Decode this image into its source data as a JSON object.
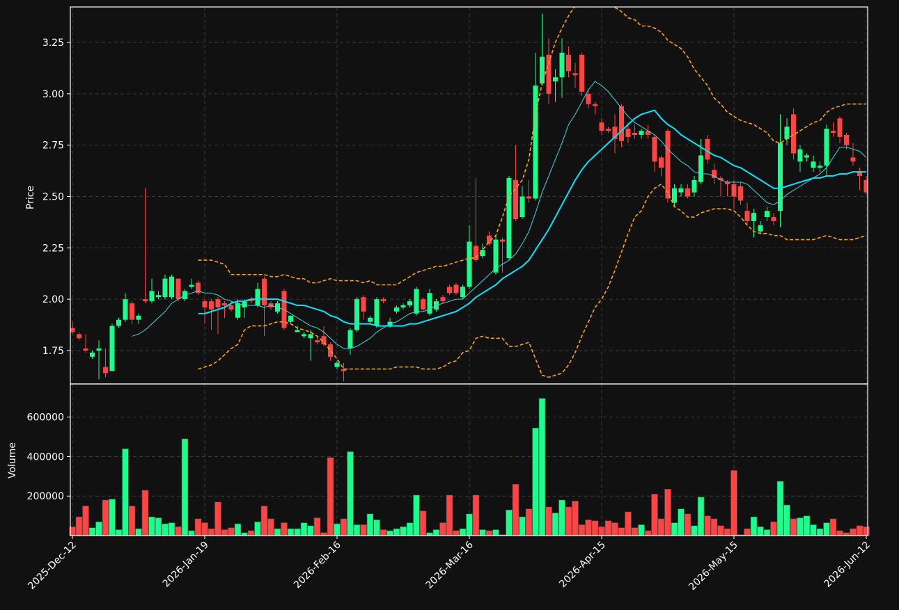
{
  "chart_data": {
    "type": "candlestick",
    "ylabel": "Price",
    "ylim": [
      1.5875,
      3.4227
    ],
    "yticks": [
      1.75,
      {
        "value": 2.0,
        "label": "2.00"
      },
      2.25,
      {
        "value": 2.5,
        "label": "2.50"
      },
      2.75,
      {
        "value": 3.0,
        "label": "3.00"
      },
      3.25
    ],
    "grid": true,
    "up_color": "#1aff8c",
    "down_color": "#ff4444",
    "categories": [
      "2025-Dec-12",
      null,
      null,
      null,
      null,
      null,
      null,
      null,
      null,
      null,
      null,
      null,
      null,
      null,
      null,
      null,
      null,
      null,
      null,
      null,
      "2026-Jan-19",
      null,
      null,
      null,
      null,
      null,
      null,
      null,
      null,
      null,
      null,
      null,
      null,
      null,
      null,
      null,
      null,
      null,
      null,
      null,
      "2026-Feb-16",
      null,
      null,
      null,
      null,
      null,
      null,
      null,
      null,
      null,
      null,
      null,
      null,
      null,
      null,
      null,
      null,
      null,
      null,
      null,
      "2026-Mar-16",
      null,
      null,
      null,
      null,
      null,
      null,
      null,
      null,
      null,
      null,
      null,
      null,
      null,
      null,
      null,
      null,
      null,
      null,
      null,
      "2026-Apr-15",
      null,
      null,
      null,
      null,
      null,
      null,
      null,
      null,
      null,
      null,
      null,
      null,
      null,
      null,
      null,
      null,
      null,
      null,
      null,
      "2026-May-15",
      null,
      null,
      null,
      null,
      null,
      null,
      null,
      null,
      null,
      null,
      null,
      null,
      null,
      null,
      null,
      null,
      null,
      null,
      null,
      "2026-Jun-12"
    ],
    "open": [
      1.86,
      1.83,
      1.76,
      1.72,
      1.75,
      1.67,
      1.65,
      1.87,
      1.9,
      1.98,
      1.9,
      2.0,
      1.99,
      2.01,
      2.01,
      2.01,
      2.1,
      2.0,
      2.06,
      2.08,
      1.99,
      1.99,
      2.0,
      1.98,
      1.97,
      1.91,
      1.96,
      2.0,
      1.97,
      2.1,
      1.98,
      1.94,
      2.04,
      1.89,
      1.84,
      1.82,
      1.81,
      1.8,
      1.82,
      1.78,
      1.67,
      1.66,
      1.76,
      1.85,
      2.01,
      1.89,
      1.87,
      2.0,
      1.87,
      1.94,
      1.96,
      1.97,
      1.93,
      2.0,
      1.93,
      1.95,
      2.01,
      2.06,
      2.07,
      2.01,
      2.06,
      2.26,
      2.21,
      2.31,
      2.13,
      2.29,
      2.2,
      2.58,
      2.4,
      2.5,
      2.49,
      3.05,
      3.19,
      3.06,
      3.08,
      3.19,
      3.1,
      3.19,
      3.0,
      2.95,
      2.86,
      2.83,
      2.84,
      2.94,
      2.83,
      2.81,
      2.8,
      2.82,
      2.79,
      2.69,
      2.82,
      2.47,
      2.52,
      2.54,
      2.52,
      2.57,
      2.78,
      2.63,
      2.59,
      2.57,
      2.56,
      2.55,
      2.43,
      2.38,
      2.33,
      2.4,
      2.4,
      2.43,
      2.78,
      2.9,
      2.67,
      2.69,
      2.64,
      2.64,
      2.65,
      2.82,
      2.88,
      2.8,
      2.69,
      2.62,
      2.58
    ],
    "high": [
      1.89,
      1.84,
      1.83,
      1.75,
      1.8,
      1.76,
      1.88,
      1.91,
      2.03,
      1.99,
      1.93,
      2.54,
      2.1,
      2.04,
      2.12,
      2.12,
      2.1,
      2.05,
      2.1,
      2.09,
      2.0,
      2.0,
      2.01,
      1.99,
      1.99,
      2.0,
      2.0,
      2.01,
      2.08,
      2.11,
      1.99,
      1.99,
      2.05,
      1.92,
      1.87,
      1.84,
      1.85,
      1.82,
      1.87,
      1.79,
      1.7,
      1.69,
      1.86,
      2.01,
      2.02,
      1.92,
      2.01,
      2.01,
      1.91,
      1.97,
      1.98,
      2.0,
      2.06,
      2.01,
      2.05,
      2.0,
      2.02,
      2.07,
      2.08,
      2.07,
      2.36,
      2.59,
      2.27,
      2.33,
      2.31,
      2.3,
      2.6,
      2.75,
      2.55,
      2.58,
      3.2,
      3.39,
      3.27,
      3.12,
      3.27,
      3.23,
      3.15,
      3.2,
      3.02,
      2.96,
      2.88,
      2.84,
      2.9,
      2.95,
      2.86,
      2.85,
      2.83,
      2.85,
      2.8,
      2.7,
      2.83,
      2.56,
      2.56,
      2.56,
      2.6,
      2.78,
      2.8,
      2.66,
      2.6,
      2.58,
      2.58,
      2.57,
      2.47,
      2.44,
      2.38,
      2.45,
      2.42,
      2.9,
      2.88,
      2.93,
      2.75,
      2.71,
      2.7,
      2.67,
      2.85,
      2.86,
      2.89,
      2.81,
      2.76,
      2.64,
      2.6
    ],
    "low": [
      1.83,
      1.8,
      1.74,
      1.71,
      1.61,
      1.62,
      1.65,
      1.86,
      1.89,
      1.88,
      1.88,
      1.98,
      1.98,
      2.0,
      2.0,
      2.0,
      1.99,
      1.99,
      2.05,
      2.02,
      1.88,
      1.85,
      1.83,
      1.91,
      1.94,
      1.9,
      1.91,
      1.98,
      1.96,
      1.82,
      1.95,
      1.93,
      1.85,
      1.88,
      1.84,
      1.81,
      1.7,
      1.78,
      1.77,
      1.7,
      1.66,
      1.6,
      1.73,
      1.84,
      1.9,
      1.88,
      1.86,
      1.98,
      1.86,
      1.93,
      1.95,
      1.96,
      1.92,
      1.94,
      1.92,
      1.94,
      1.98,
      2.02,
      2.02,
      2.0,
      2.05,
      2.18,
      2.2,
      2.26,
      2.12,
      2.13,
      2.19,
      2.38,
      2.39,
      2.47,
      2.48,
      3.04,
      2.95,
      2.96,
      2.98,
      3.08,
      3.03,
      2.99,
      2.93,
      2.9,
      2.8,
      2.81,
      2.71,
      2.74,
      2.76,
      2.78,
      2.78,
      2.78,
      2.62,
      2.6,
      2.47,
      2.45,
      2.5,
      2.49,
      2.5,
      2.56,
      2.66,
      2.56,
      2.5,
      2.5,
      2.44,
      2.46,
      2.36,
      2.3,
      2.32,
      2.38,
      2.36,
      2.35,
      2.75,
      2.68,
      2.62,
      2.67,
      2.62,
      2.62,
      2.6,
      2.79,
      2.76,
      2.73,
      2.65,
      2.53,
      2.51
    ],
    "close": [
      1.84,
      1.81,
      1.75,
      1.74,
      1.76,
      1.64,
      1.87,
      1.9,
      2.0,
      1.9,
      1.92,
      1.99,
      2.04,
      2.02,
      2.1,
      2.11,
      2.0,
      2.04,
      2.07,
      2.03,
      1.96,
      1.95,
      1.96,
      1.97,
      1.95,
      1.98,
      1.99,
      1.99,
      2.05,
      1.97,
      1.96,
      1.98,
      1.86,
      1.92,
      1.85,
      1.83,
      1.83,
      1.79,
      1.78,
      1.72,
      1.69,
      1.65,
      1.85,
      2.0,
      1.94,
      1.91,
      2.0,
      1.99,
      1.89,
      1.96,
      1.97,
      1.99,
      2.05,
      1.95,
      2.03,
      1.99,
      1.99,
      2.03,
      2.03,
      2.06,
      2.28,
      2.19,
      2.24,
      2.27,
      2.29,
      2.28,
      2.59,
      2.39,
      2.5,
      2.49,
      3.04,
      3.18,
      3.0,
      3.08,
      3.2,
      3.11,
      3.09,
      3.01,
      2.95,
      2.94,
      2.82,
      2.82,
      2.78,
      2.77,
      2.79,
      2.8,
      2.82,
      2.8,
      2.67,
      2.64,
      2.49,
      2.54,
      2.54,
      2.5,
      2.58,
      2.7,
      2.68,
      2.59,
      2.58,
      2.56,
      2.5,
      2.48,
      2.38,
      2.42,
      2.36,
      2.43,
      2.38,
      2.76,
      2.84,
      2.71,
      2.73,
      2.7,
      2.67,
      2.65,
      2.83,
      2.81,
      2.79,
      2.75,
      2.67,
      2.6,
      2.52
    ],
    "overlays": [
      {
        "color": "#3fd8d8",
        "width": 1,
        "style": "solid",
        "values": [
          null,
          null,
          null,
          null,
          null,
          null,
          null,
          null,
          null,
          1.82,
          1.83,
          1.85,
          1.88,
          1.91,
          1.94,
          1.98,
          2.0,
          2.02,
          2.03,
          2.04,
          2.03,
          2.03,
          2.02,
          2.0,
          1.99,
          1.98,
          1.97,
          1.97,
          1.97,
          1.96,
          1.97,
          1.96,
          1.95,
          1.93,
          1.91,
          1.89,
          1.87,
          1.86,
          1.84,
          1.81,
          1.78,
          1.76,
          1.76,
          1.77,
          1.79,
          1.81,
          1.84,
          1.86,
          1.88,
          1.89,
          1.91,
          1.93,
          1.94,
          1.94,
          1.95,
          1.97,
          1.98,
          1.99,
          2.0,
          2.0,
          2.03,
          2.06,
          2.09,
          2.12,
          2.15,
          2.17,
          2.19,
          2.22,
          2.27,
          2.33,
          2.42,
          2.52,
          2.6,
          2.68,
          2.76,
          2.85,
          2.9,
          2.96,
          3.02,
          3.06,
          3.04,
          3.01,
          2.97,
          2.93,
          2.89,
          2.86,
          2.84,
          2.82,
          2.8,
          2.77,
          2.73,
          2.7,
          2.67,
          2.65,
          2.62,
          2.61,
          2.61,
          2.6,
          2.58,
          2.57,
          2.57,
          2.57,
          2.56,
          2.53,
          2.5,
          2.47,
          2.46,
          2.48,
          2.51,
          2.53,
          2.55,
          2.57,
          2.59,
          2.61,
          2.64,
          2.69,
          2.74,
          2.74,
          2.73,
          2.72,
          2.69
        ]
      },
      {
        "color": "#00e5ff",
        "width": 2,
        "style": "solid",
        "values": [
          null,
          null,
          null,
          null,
          null,
          null,
          null,
          null,
          null,
          null,
          null,
          null,
          null,
          null,
          null,
          null,
          null,
          null,
          null,
          1.93,
          1.93,
          1.94,
          1.95,
          1.96,
          1.98,
          1.99,
          1.99,
          2.0,
          2.0,
          2.0,
          2.0,
          2.0,
          1.99,
          1.98,
          1.97,
          1.97,
          1.96,
          1.95,
          1.94,
          1.92,
          1.91,
          1.89,
          1.88,
          1.88,
          1.88,
          1.88,
          1.87,
          1.87,
          1.87,
          1.87,
          1.87,
          1.88,
          1.88,
          1.89,
          1.9,
          1.91,
          1.92,
          1.93,
          1.94,
          1.96,
          1.98,
          2.01,
          2.03,
          2.05,
          2.07,
          2.1,
          2.12,
          2.14,
          2.16,
          2.19,
          2.24,
          2.29,
          2.34,
          2.4,
          2.46,
          2.52,
          2.58,
          2.63,
          2.67,
          2.7,
          2.73,
          2.76,
          2.79,
          2.82,
          2.85,
          2.88,
          2.9,
          2.91,
          2.92,
          2.88,
          2.85,
          2.83,
          2.8,
          2.78,
          2.76,
          2.74,
          2.72,
          2.7,
          2.69,
          2.67,
          2.65,
          2.64,
          2.62,
          2.6,
          2.58,
          2.56,
          2.54,
          2.54,
          2.55,
          2.56,
          2.57,
          2.58,
          2.59,
          2.59,
          2.6,
          2.6,
          2.61,
          2.61,
          2.62,
          2.62,
          2.62
        ]
      },
      {
        "color": "#ffa500",
        "width": 1.6,
        "style": "dashed",
        "values": [
          null,
          null,
          null,
          null,
          null,
          null,
          null,
          null,
          null,
          null,
          null,
          null,
          null,
          null,
          null,
          null,
          null,
          null,
          null,
          2.19,
          2.19,
          2.19,
          2.18,
          2.17,
          2.12,
          2.12,
          2.12,
          2.12,
          2.12,
          2.12,
          2.11,
          2.11,
          2.12,
          2.11,
          2.1,
          2.1,
          2.08,
          2.08,
          2.09,
          2.1,
          2.09,
          2.09,
          2.09,
          2.09,
          2.08,
          2.09,
          2.07,
          2.07,
          2.07,
          2.07,
          2.09,
          2.11,
          2.13,
          2.14,
          2.15,
          2.16,
          2.16,
          2.17,
          2.18,
          2.19,
          2.2,
          2.2,
          2.24,
          2.28,
          2.31,
          2.4,
          2.5,
          2.54,
          2.58,
          2.68,
          2.9,
          3.05,
          3.15,
          3.25,
          3.32,
          3.38,
          3.43,
          3.46,
          3.48,
          3.48,
          3.46,
          3.44,
          3.42,
          3.4,
          3.37,
          3.36,
          3.33,
          3.33,
          3.32,
          3.3,
          3.26,
          3.24,
          3.22,
          3.18,
          3.12,
          3.08,
          3.04,
          2.98,
          2.95,
          2.91,
          2.89,
          2.87,
          2.86,
          2.85,
          2.83,
          2.81,
          2.77,
          2.76,
          2.78,
          2.8,
          2.82,
          2.84,
          2.86,
          2.87,
          2.91,
          2.93,
          2.94,
          2.95,
          2.95,
          2.95,
          2.95
        ]
      },
      {
        "color": "#ffa500",
        "width": 1.6,
        "style": "dashed",
        "values": [
          null,
          null,
          null,
          null,
          null,
          null,
          null,
          null,
          null,
          null,
          null,
          null,
          null,
          null,
          null,
          null,
          null,
          null,
          null,
          1.66,
          1.67,
          1.68,
          1.7,
          1.73,
          1.76,
          1.78,
          1.85,
          1.87,
          1.87,
          1.87,
          1.88,
          1.89,
          1.89,
          1.88,
          1.86,
          1.85,
          1.84,
          1.82,
          1.79,
          1.75,
          1.71,
          1.66,
          1.66,
          1.66,
          1.66,
          1.66,
          1.66,
          1.66,
          1.66,
          1.67,
          1.67,
          1.67,
          1.67,
          1.66,
          1.66,
          1.66,
          1.67,
          1.69,
          1.7,
          1.74,
          1.75,
          1.81,
          1.82,
          1.81,
          1.81,
          1.81,
          1.77,
          1.77,
          1.78,
          1.79,
          1.71,
          1.63,
          1.62,
          1.63,
          1.64,
          1.68,
          1.74,
          1.82,
          1.89,
          1.96,
          2.0,
          2.06,
          2.14,
          2.23,
          2.32,
          2.4,
          2.43,
          2.5,
          2.54,
          2.56,
          2.52,
          2.45,
          2.43,
          2.4,
          2.4,
          2.42,
          2.43,
          2.44,
          2.44,
          2.44,
          2.43,
          2.4,
          2.36,
          2.33,
          2.32,
          2.32,
          2.31,
          2.31,
          2.29,
          2.29,
          2.29,
          2.29,
          2.29,
          2.3,
          2.31,
          2.3,
          2.29,
          2.29,
          2.29,
          2.3,
          2.31
        ]
      }
    ],
    "volume": {
      "ylabel": "Volume",
      "ylim": [
        0,
        768000
      ],
      "yticks": [
        200000,
        400000,
        600000
      ],
      "values": [
        45000,
        95000,
        150000,
        40000,
        70000,
        180000,
        185000,
        30000,
        440000,
        150000,
        35000,
        230000,
        95000,
        90000,
        60000,
        65000,
        45000,
        490000,
        25000,
        85000,
        65000,
        35000,
        170000,
        30000,
        40000,
        60000,
        15000,
        25000,
        70000,
        150000,
        85000,
        35000,
        65000,
        35000,
        35000,
        65000,
        50000,
        90000,
        15000,
        395000,
        60000,
        85000,
        425000,
        55000,
        55000,
        110000,
        80000,
        30000,
        25000,
        35000,
        45000,
        65000,
        205000,
        125000,
        15000,
        30000,
        65000,
        205000,
        25000,
        35000,
        110000,
        205000,
        30000,
        25000,
        30000,
        5000,
        130000,
        260000,
        95000,
        135000,
        545000,
        695000,
        145000,
        115000,
        180000,
        145000,
        175000,
        55000,
        80000,
        75000,
        45000,
        75000,
        65000,
        40000,
        120000,
        40000,
        55000,
        25000,
        210000,
        85000,
        235000,
        65000,
        135000,
        110000,
        50000,
        195000,
        100000,
        85000,
        50000,
        35000,
        330000,
        5000,
        35000,
        95000,
        45000,
        30000,
        70000,
        275000,
        155000,
        85000,
        90000,
        100000,
        55000,
        35000,
        65000,
        85000,
        25000,
        15000,
        35000,
        50000,
        45000
      ]
    }
  }
}
